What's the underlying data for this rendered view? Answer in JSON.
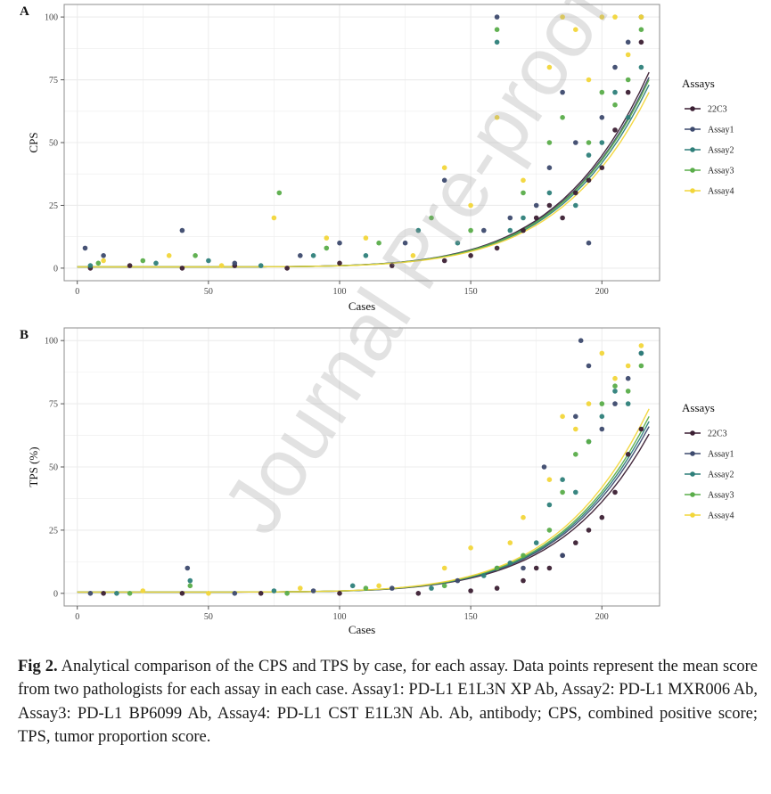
{
  "caption": {
    "label": "Fig 2.",
    "text": " Analytical comparison of the CPS and TPS by case, for each assay. Data points represent the mean score from two pathologists for each assay in each case. Assay1: PD-L1 E1L3N XP Ab, Assay2: PD-L1 MXR006 Ab, Assay3: PD-L1 BP6099 Ab, Assay4: PD-L1 CST E1L3N Ab. Ab, antibody; CPS, combined positive score; TPS, tumor proportion score."
  },
  "watermark": "Journal Pre-proof",
  "colors": {
    "22C3": "#3b1f33",
    "Assay1": "#3d4a6e",
    "Assay2": "#2e7f7a",
    "Assay3": "#5aad4a",
    "Assay4": "#f2d63a",
    "panel_border": "#8c8c8c",
    "grid": "#ececec"
  },
  "chart_data": [
    {
      "panel": "A",
      "type": "scatter",
      "xlabel": "Cases",
      "ylabel": "CPS",
      "xlim": [
        -5,
        222
      ],
      "ylim": [
        -5,
        105
      ],
      "xticks": [
        0,
        50,
        100,
        150,
        200
      ],
      "yticks": [
        0,
        25,
        50,
        75,
        100
      ],
      "grid": true,
      "legend_title": "Assays",
      "legend_position": "right",
      "series": [
        {
          "name": "22C3",
          "trend_end": 78,
          "points": [
            [
              5,
              0
            ],
            [
              20,
              1
            ],
            [
              40,
              0
            ],
            [
              60,
              1
            ],
            [
              80,
              0
            ],
            [
              100,
              2
            ],
            [
              120,
              1
            ],
            [
              140,
              3
            ],
            [
              150,
              5
            ],
            [
              160,
              8
            ],
            [
              170,
              15
            ],
            [
              175,
              20
            ],
            [
              180,
              25
            ],
            [
              185,
              20
            ],
            [
              190,
              30
            ],
            [
              195,
              35
            ],
            [
              200,
              40
            ],
            [
              205,
              55
            ],
            [
              210,
              70
            ],
            [
              215,
              90
            ]
          ]
        },
        {
          "name": "Assay1",
          "trend_end": 76,
          "points": [
            [
              3,
              8
            ],
            [
              10,
              5
            ],
            [
              40,
              15
            ],
            [
              60,
              2
            ],
            [
              85,
              5
            ],
            [
              100,
              10
            ],
            [
              125,
              10
            ],
            [
              140,
              35
            ],
            [
              155,
              15
            ],
            [
              160,
              100
            ],
            [
              165,
              20
            ],
            [
              175,
              25
            ],
            [
              180,
              40
            ],
            [
              185,
              70
            ],
            [
              190,
              50
            ],
            [
              195,
              10
            ],
            [
              200,
              60
            ],
            [
              205,
              80
            ],
            [
              210,
              90
            ],
            [
              215,
              100
            ]
          ]
        },
        {
          "name": "Assay2",
          "trend_end": 73,
          "points": [
            [
              5,
              1
            ],
            [
              30,
              2
            ],
            [
              50,
              3
            ],
            [
              70,
              1
            ],
            [
              90,
              5
            ],
            [
              110,
              5
            ],
            [
              130,
              15
            ],
            [
              145,
              10
            ],
            [
              160,
              90
            ],
            [
              165,
              15
            ],
            [
              170,
              20
            ],
            [
              180,
              30
            ],
            [
              190,
              25
            ],
            [
              195,
              45
            ],
            [
              200,
              50
            ],
            [
              205,
              70
            ],
            [
              210,
              60
            ],
            [
              215,
              80
            ]
          ]
        },
        {
          "name": "Assay3",
          "trend_end": 75,
          "points": [
            [
              8,
              2
            ],
            [
              25,
              3
            ],
            [
              45,
              5
            ],
            [
              77,
              30
            ],
            [
              95,
              8
            ],
            [
              115,
              10
            ],
            [
              135,
              20
            ],
            [
              150,
              15
            ],
            [
              160,
              95
            ],
            [
              170,
              30
            ],
            [
              180,
              50
            ],
            [
              185,
              60
            ],
            [
              195,
              50
            ],
            [
              200,
              70
            ],
            [
              205,
              65
            ],
            [
              210,
              75
            ],
            [
              215,
              95
            ]
          ]
        },
        {
          "name": "Assay4",
          "trend_end": 70,
          "points": [
            [
              10,
              3
            ],
            [
              35,
              5
            ],
            [
              55,
              1
            ],
            [
              75,
              20
            ],
            [
              95,
              12
            ],
            [
              110,
              12
            ],
            [
              128,
              5
            ],
            [
              140,
              40
            ],
            [
              150,
              25
            ],
            [
              160,
              60
            ],
            [
              170,
              35
            ],
            [
              180,
              80
            ],
            [
              185,
              100
            ],
            [
              190,
              95
            ],
            [
              195,
              75
            ],
            [
              200,
              100
            ],
            [
              205,
              100
            ],
            [
              210,
              85
            ],
            [
              215,
              100
            ]
          ]
        }
      ]
    },
    {
      "panel": "B",
      "type": "scatter",
      "xlabel": "Cases",
      "ylabel": "TPS (%)",
      "xlim": [
        -5,
        222
      ],
      "ylim": [
        -5,
        105
      ],
      "xticks": [
        0,
        50,
        100,
        150,
        200
      ],
      "yticks": [
        0,
        25,
        50,
        75,
        100
      ],
      "grid": true,
      "legend_title": "Assays",
      "legend_position": "right",
      "series": [
        {
          "name": "22C3",
          "trend_end": 63,
          "points": [
            [
              10,
              0
            ],
            [
              40,
              0
            ],
            [
              70,
              0
            ],
            [
              100,
              0
            ],
            [
              130,
              0
            ],
            [
              150,
              1
            ],
            [
              160,
              2
            ],
            [
              170,
              5
            ],
            [
              175,
              10
            ],
            [
              180,
              10
            ],
            [
              185,
              15
            ],
            [
              190,
              20
            ],
            [
              195,
              25
            ],
            [
              200,
              30
            ],
            [
              205,
              40
            ],
            [
              210,
              55
            ],
            [
              215,
              65
            ]
          ]
        },
        {
          "name": "Assay1",
          "trend_end": 66,
          "points": [
            [
              5,
              0
            ],
            [
              42,
              10
            ],
            [
              60,
              0
            ],
            [
              90,
              1
            ],
            [
              120,
              2
            ],
            [
              145,
              5
            ],
            [
              160,
              10
            ],
            [
              170,
              10
            ],
            [
              178,
              50
            ],
            [
              185,
              15
            ],
            [
              190,
              70
            ],
            [
              192,
              100
            ],
            [
              195,
              90
            ],
            [
              200,
              65
            ],
            [
              205,
              75
            ],
            [
              210,
              85
            ],
            [
              215,
              95
            ]
          ]
        },
        {
          "name": "Assay2",
          "trend_end": 68,
          "points": [
            [
              15,
              0
            ],
            [
              43,
              5
            ],
            [
              75,
              1
            ],
            [
              105,
              3
            ],
            [
              135,
              2
            ],
            [
              155,
              7
            ],
            [
              165,
              12
            ],
            [
              175,
              20
            ],
            [
              180,
              35
            ],
            [
              185,
              45
            ],
            [
              190,
              40
            ],
            [
              195,
              60
            ],
            [
              200,
              70
            ],
            [
              205,
              80
            ],
            [
              210,
              75
            ],
            [
              215,
              95
            ]
          ]
        },
        {
          "name": "Assay3",
          "trend_end": 70,
          "points": [
            [
              20,
              0
            ],
            [
              43,
              3
            ],
            [
              80,
              0
            ],
            [
              110,
              2
            ],
            [
              140,
              3
            ],
            [
              160,
              10
            ],
            [
              170,
              15
            ],
            [
              180,
              25
            ],
            [
              185,
              40
            ],
            [
              190,
              55
            ],
            [
              195,
              60
            ],
            [
              200,
              75
            ],
            [
              205,
              82
            ],
            [
              210,
              80
            ],
            [
              215,
              90
            ]
          ]
        },
        {
          "name": "Assay4",
          "trend_end": 73,
          "points": [
            [
              25,
              1
            ],
            [
              50,
              0
            ],
            [
              85,
              2
            ],
            [
              115,
              3
            ],
            [
              140,
              10
            ],
            [
              150,
              18
            ],
            [
              165,
              20
            ],
            [
              170,
              30
            ],
            [
              180,
              45
            ],
            [
              185,
              70
            ],
            [
              190,
              65
            ],
            [
              195,
              75
            ],
            [
              200,
              95
            ],
            [
              205,
              85
            ],
            [
              210,
              90
            ],
            [
              215,
              98
            ]
          ]
        }
      ]
    }
  ]
}
